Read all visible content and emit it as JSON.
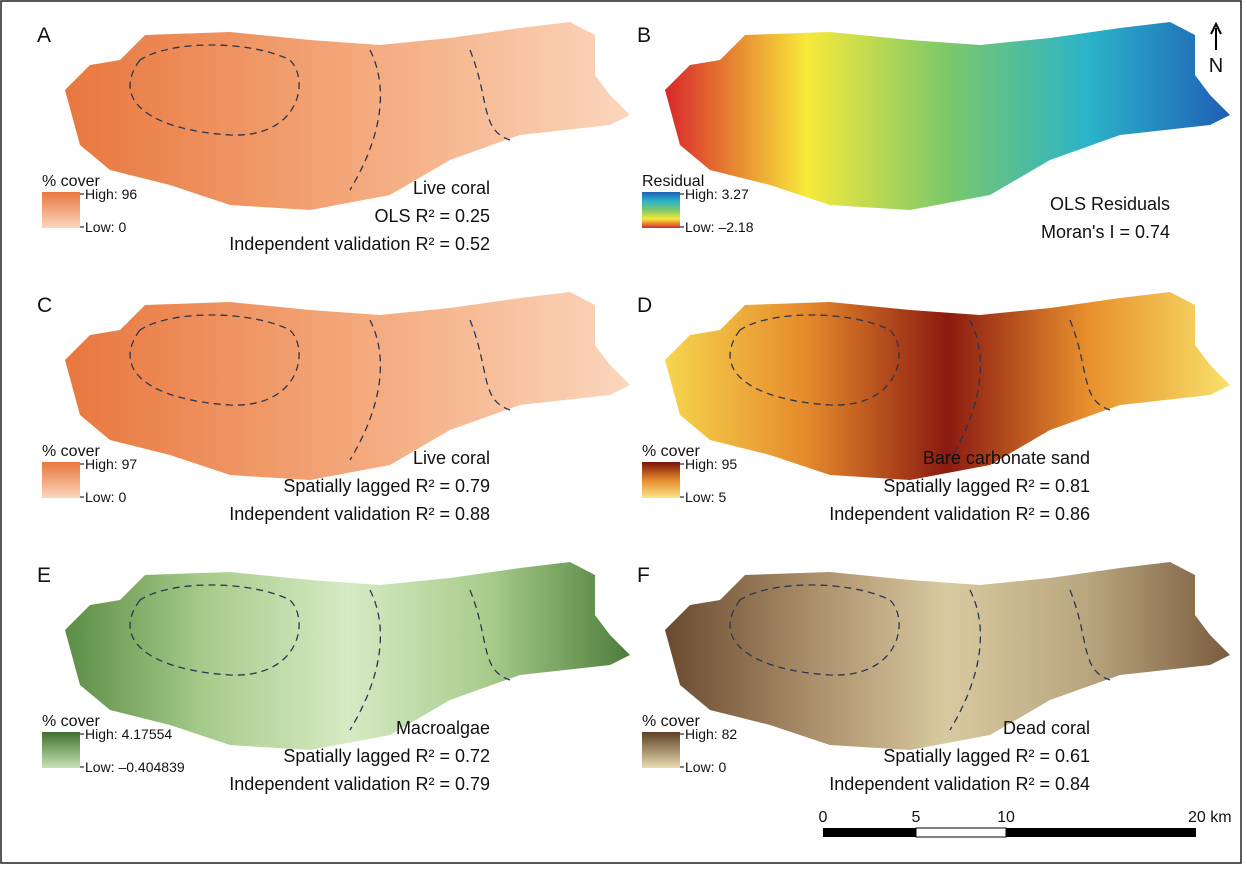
{
  "panels": [
    {
      "letter": "A",
      "legend_title": "% cover",
      "legend_high": "High: 96",
      "legend_low": "Low: 0",
      "caption": [
        "Live coral",
        "OLS R² = 0.25",
        "Independent validation R² = 0.52"
      ]
    },
    {
      "letter": "B",
      "legend_title": "Residual",
      "legend_high": "High: 3.27",
      "legend_low": "Low: –2.18",
      "caption": [
        "OLS Residuals",
        "Moran's I = 0.74"
      ]
    },
    {
      "letter": "C",
      "legend_title": "% cover",
      "legend_high": "High: 97",
      "legend_low": "Low: 0",
      "caption": [
        "Live coral",
        "Spatially lagged R² = 0.79",
        "Independent validation R² = 0.88"
      ]
    },
    {
      "letter": "D",
      "legend_title": "% cover",
      "legend_high": "High: 95",
      "legend_low": "Low: 5",
      "caption": [
        "Bare carbonate sand",
        "Spatially lagged R² = 0.81",
        "Independent validation R² = 0.86"
      ]
    },
    {
      "letter": "E",
      "legend_title": "% cover",
      "legend_high": "High: 4.17554",
      "legend_low": "Low: –0.404839",
      "caption": [
        "Macroalgae",
        "Spatially lagged R² = 0.72",
        "Independent validation R² = 0.79"
      ]
    },
    {
      "letter": "F",
      "legend_title": "% cover",
      "legend_high": "High: 82",
      "legend_low": "Low: 0",
      "caption": [
        "Dead coral",
        "Spatially lagged R² = 0.61",
        "Independent validation R² = 0.84"
      ]
    }
  ],
  "north": "N",
  "scale_bar": [
    "0",
    "5",
    "10",
    "20 km"
  ]
}
